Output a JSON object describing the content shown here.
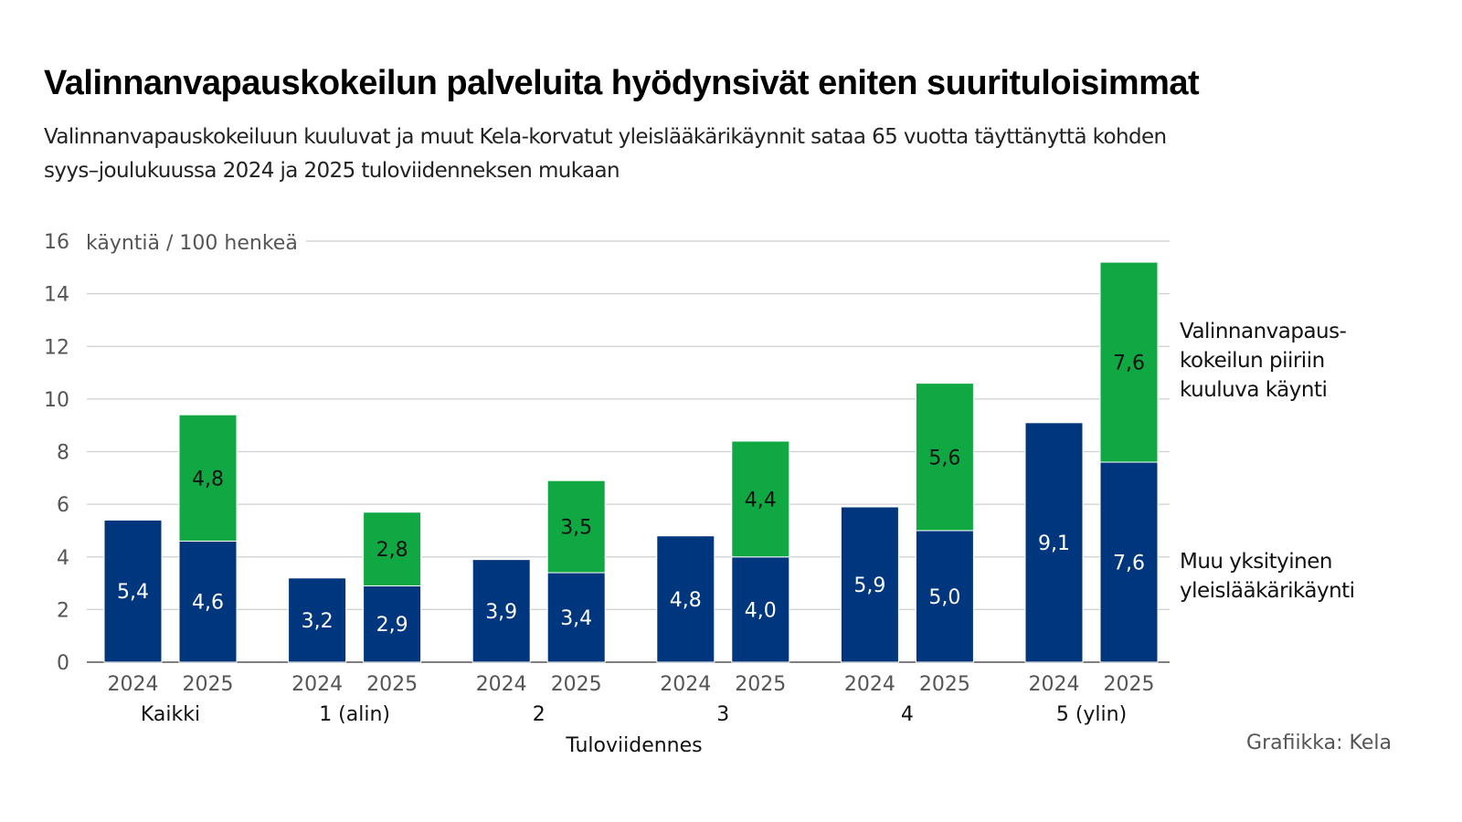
{
  "chart_data": {
    "type": "bar",
    "stacked": true,
    "title": "Valinnanvapauskokeilun palveluita hyödynsivät eniten suurituloisimmat",
    "subtitle": [
      "Valinnanvapauskokeiluun kuuluvat ja muut Kela-korvatut yleislääkärikäynnit sataa 65 vuotta täyttänyttä kohden",
      "syys–joulukuussa 2024 ja 2025 tuloviidenneksen mukaan"
    ],
    "ylabel": "käyntiä / 100 henkeä",
    "xlabel": "Tuloviidennes",
    "ylim": [
      0,
      16
    ],
    "yticks": [
      0,
      2,
      4,
      6,
      8,
      10,
      12,
      14,
      16
    ],
    "grid": true,
    "legend_placement": "right",
    "groups": [
      "Kaikki",
      "1 (alin)",
      "2",
      "3",
      "4",
      "5 (ylin)"
    ],
    "years": [
      "2024",
      "2025"
    ],
    "series": [
      {
        "name": "Muu yksityinen yleislääkärikäynti",
        "legend_lines": [
          "Muu yksityinen",
          "yleislääkärikäynti"
        ],
        "color": "#00367e",
        "label_color": "#ffffff",
        "values": [
          [
            5.4,
            4.6
          ],
          [
            3.2,
            2.9
          ],
          [
            3.9,
            3.4
          ],
          [
            4.8,
            4.0
          ],
          [
            5.9,
            5.0
          ],
          [
            9.1,
            7.6
          ]
        ],
        "labels": [
          [
            "5,4",
            "4,6"
          ],
          [
            "3,2",
            "2,9"
          ],
          [
            "3,9",
            "3,4"
          ],
          [
            "4,8",
            "4,0"
          ],
          [
            "5,9",
            "5,0"
          ],
          [
            "9,1",
            "7,6"
          ]
        ]
      },
      {
        "name": "Valinnanvapauskokeilun piiriin kuuluva käynti",
        "legend_lines": [
          "Valinnanvapaus-",
          "kokeilun piiriin",
          "kuuluva käynti"
        ],
        "color": "#0fa842",
        "label_color": "#111111",
        "values": [
          [
            0,
            4.8
          ],
          [
            0,
            2.8
          ],
          [
            0,
            3.5
          ],
          [
            0,
            4.4
          ],
          [
            0,
            5.6
          ],
          [
            0,
            7.6
          ]
        ],
        "labels": [
          [
            "",
            "4,8"
          ],
          [
            "",
            "2,8"
          ],
          [
            "",
            "3,5"
          ],
          [
            "",
            "4,4"
          ],
          [
            "",
            "5,6"
          ],
          [
            "",
            "7,6"
          ]
        ]
      }
    ],
    "source": "Grafiikka: Kela"
  }
}
